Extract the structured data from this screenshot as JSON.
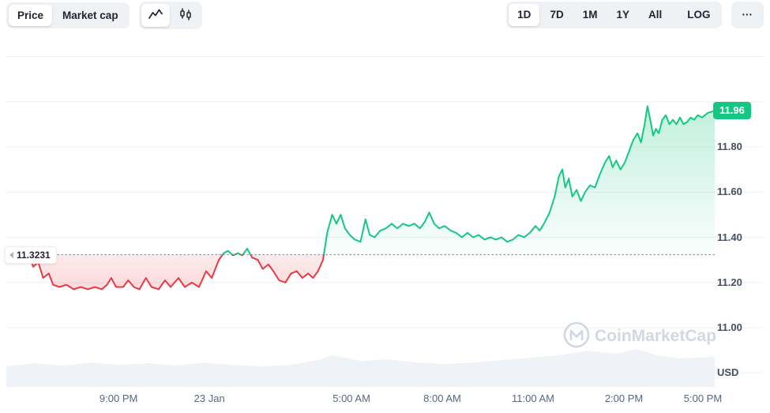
{
  "colors": {
    "up": "#16c784",
    "down": "#ea3943",
    "baseline": "#8e99a8",
    "grid": "#edf0f4",
    "volume_fill": "#eff2f6",
    "badge_bg": "#16c784",
    "toolbar_bg": "#eff2f5",
    "text_dark": "#222531",
    "text_muted": "#58667e",
    "watermark": "#d2d8e1"
  },
  "header": {
    "view_toggle": [
      {
        "label": "Price",
        "active": true
      },
      {
        "label": "Market cap",
        "active": false
      }
    ],
    "chart_type_icons": [
      {
        "name": "line-chart-icon",
        "active": true
      },
      {
        "name": "candlestick-icon",
        "active": false
      }
    ],
    "ranges": [
      {
        "label": "1D",
        "active": true
      },
      {
        "label": "7D",
        "active": false
      },
      {
        "label": "1M",
        "active": false
      },
      {
        "label": "1Y",
        "active": false
      },
      {
        "label": "All",
        "active": false
      },
      {
        "label": "LOG",
        "active": false
      }
    ],
    "more_label": "···"
  },
  "watermark": {
    "label": "CoinMarketCap"
  },
  "chart_data": {
    "type": "line",
    "unit": "USD",
    "title": "1D price chart",
    "baseline": {
      "value": 11.3231,
      "label": "11.3231"
    },
    "current_price": {
      "value": 11.96,
      "label": "11.96"
    },
    "ylim": [
      10.74,
      12.2
    ],
    "grid_values": [
      12.2,
      12.0,
      11.8,
      11.6,
      11.4,
      11.2,
      11.0,
      10.8
    ],
    "y_ticks": [
      {
        "label": "11.80",
        "value": 11.8
      },
      {
        "label": "11.60",
        "value": 11.6
      },
      {
        "label": "11.40",
        "value": 11.4
      },
      {
        "label": "11.20",
        "value": 11.2
      },
      {
        "label": "11.00",
        "value": 11.0
      },
      {
        "label": "USD",
        "value": 10.8
      }
    ],
    "x_ticks": [
      {
        "label": "9:00 PM",
        "pos": 0.154
      },
      {
        "label": "23 Jan",
        "pos": 0.272
      },
      {
        "label": "5:00 AM",
        "pos": 0.4565
      },
      {
        "label": "8:00 AM",
        "pos": 0.5744
      },
      {
        "label": "11:00 AM",
        "pos": 0.6923
      },
      {
        "label": "2:00 PM",
        "pos": 0.8103
      },
      {
        "label": "5:00 PM",
        "pos": 0.9128
      }
    ],
    "series": [
      [
        0.033,
        11.31
      ],
      [
        0.038,
        11.27
      ],
      [
        0.045,
        11.29
      ],
      [
        0.052,
        11.22
      ],
      [
        0.06,
        11.24
      ],
      [
        0.066,
        11.19
      ],
      [
        0.075,
        11.18
      ],
      [
        0.085,
        11.19
      ],
      [
        0.095,
        11.17
      ],
      [
        0.105,
        11.18
      ],
      [
        0.115,
        11.17
      ],
      [
        0.125,
        11.18
      ],
      [
        0.135,
        11.17
      ],
      [
        0.142,
        11.19
      ],
      [
        0.148,
        11.22
      ],
      [
        0.155,
        11.18
      ],
      [
        0.165,
        11.18
      ],
      [
        0.172,
        11.21
      ],
      [
        0.18,
        11.18
      ],
      [
        0.188,
        11.17
      ],
      [
        0.197,
        11.22
      ],
      [
        0.205,
        11.18
      ],
      [
        0.215,
        11.17
      ],
      [
        0.224,
        11.21
      ],
      [
        0.232,
        11.18
      ],
      [
        0.243,
        11.22
      ],
      [
        0.252,
        11.18
      ],
      [
        0.262,
        11.2
      ],
      [
        0.272,
        11.18
      ],
      [
        0.282,
        11.25
      ],
      [
        0.29,
        11.22
      ],
      [
        0.3,
        11.3
      ],
      [
        0.307,
        11.33
      ],
      [
        0.313,
        11.34
      ],
      [
        0.32,
        11.32
      ],
      [
        0.327,
        11.33
      ],
      [
        0.333,
        11.32
      ],
      [
        0.34,
        11.35
      ],
      [
        0.347,
        11.31
      ],
      [
        0.355,
        11.3
      ],
      [
        0.362,
        11.26
      ],
      [
        0.37,
        11.28
      ],
      [
        0.377,
        11.25
      ],
      [
        0.385,
        11.21
      ],
      [
        0.394,
        11.2
      ],
      [
        0.402,
        11.24
      ],
      [
        0.41,
        11.25
      ],
      [
        0.418,
        11.22
      ],
      [
        0.426,
        11.24
      ],
      [
        0.433,
        11.22
      ],
      [
        0.44,
        11.25
      ],
      [
        0.447,
        11.3
      ],
      [
        0.453,
        11.42
      ],
      [
        0.46,
        11.5
      ],
      [
        0.466,
        11.46
      ],
      [
        0.472,
        11.5
      ],
      [
        0.478,
        11.44
      ],
      [
        0.485,
        11.41
      ],
      [
        0.492,
        11.39
      ],
      [
        0.5,
        11.38
      ],
      [
        0.507,
        11.48
      ],
      [
        0.513,
        11.41
      ],
      [
        0.52,
        11.4
      ],
      [
        0.528,
        11.43
      ],
      [
        0.536,
        11.44
      ],
      [
        0.544,
        11.46
      ],
      [
        0.552,
        11.44
      ],
      [
        0.56,
        11.46
      ],
      [
        0.568,
        11.45
      ],
      [
        0.576,
        11.46
      ],
      [
        0.584,
        11.44
      ],
      [
        0.591,
        11.47
      ],
      [
        0.597,
        11.51
      ],
      [
        0.604,
        11.46
      ],
      [
        0.611,
        11.44
      ],
      [
        0.619,
        11.45
      ],
      [
        0.627,
        11.43
      ],
      [
        0.635,
        11.42
      ],
      [
        0.643,
        11.4
      ],
      [
        0.651,
        11.42
      ],
      [
        0.659,
        11.4
      ],
      [
        0.667,
        11.41
      ],
      [
        0.675,
        11.39
      ],
      [
        0.683,
        11.4
      ],
      [
        0.691,
        11.39
      ],
      [
        0.699,
        11.4
      ],
      [
        0.707,
        11.38
      ],
      [
        0.715,
        11.39
      ],
      [
        0.723,
        11.41
      ],
      [
        0.731,
        11.4
      ],
      [
        0.739,
        11.42
      ],
      [
        0.747,
        11.45
      ],
      [
        0.753,
        11.43
      ],
      [
        0.759,
        11.46
      ],
      [
        0.767,
        11.51
      ],
      [
        0.774,
        11.58
      ],
      [
        0.78,
        11.67
      ],
      [
        0.785,
        11.7
      ],
      [
        0.789,
        11.62
      ],
      [
        0.794,
        11.66
      ],
      [
        0.799,
        11.58
      ],
      [
        0.805,
        11.61
      ],
      [
        0.811,
        11.56
      ],
      [
        0.817,
        11.6
      ],
      [
        0.824,
        11.63
      ],
      [
        0.831,
        11.62
      ],
      [
        0.838,
        11.68
      ],
      [
        0.845,
        11.73
      ],
      [
        0.851,
        11.76
      ],
      [
        0.856,
        11.71
      ],
      [
        0.861,
        11.74
      ],
      [
        0.867,
        11.7
      ],
      [
        0.873,
        11.73
      ],
      [
        0.879,
        11.78
      ],
      [
        0.885,
        11.83
      ],
      [
        0.891,
        11.86
      ],
      [
        0.896,
        11.82
      ],
      [
        0.901,
        11.9
      ],
      [
        0.905,
        11.98
      ],
      [
        0.909,
        11.92
      ],
      [
        0.913,
        11.85
      ],
      [
        0.917,
        11.88
      ],
      [
        0.921,
        11.86
      ],
      [
        0.926,
        11.92
      ],
      [
        0.931,
        11.94
      ],
      [
        0.936,
        11.9
      ],
      [
        0.941,
        11.92
      ],
      [
        0.946,
        11.9
      ],
      [
        0.951,
        11.93
      ],
      [
        0.956,
        11.9
      ],
      [
        0.961,
        11.91
      ],
      [
        0.966,
        11.93
      ],
      [
        0.971,
        11.92
      ],
      [
        0.976,
        11.94
      ],
      [
        0.982,
        11.93
      ],
      [
        0.99,
        11.95
      ],
      [
        1.0,
        11.96
      ]
    ],
    "volume": [
      [
        0,
        26
      ],
      [
        0.04,
        30
      ],
      [
        0.08,
        27
      ],
      [
        0.12,
        31
      ],
      [
        0.16,
        28
      ],
      [
        0.2,
        30
      ],
      [
        0.24,
        27
      ],
      [
        0.28,
        31
      ],
      [
        0.32,
        28
      ],
      [
        0.36,
        26
      ],
      [
        0.4,
        28
      ],
      [
        0.44,
        34
      ],
      [
        0.46,
        40
      ],
      [
        0.5,
        33
      ],
      [
        0.54,
        35
      ],
      [
        0.58,
        31
      ],
      [
        0.62,
        29
      ],
      [
        0.66,
        31
      ],
      [
        0.7,
        34
      ],
      [
        0.74,
        37
      ],
      [
        0.78,
        40
      ],
      [
        0.82,
        46
      ],
      [
        0.86,
        42
      ],
      [
        0.89,
        48
      ],
      [
        0.92,
        40
      ],
      [
        0.95,
        36
      ],
      [
        1,
        38
      ]
    ]
  }
}
